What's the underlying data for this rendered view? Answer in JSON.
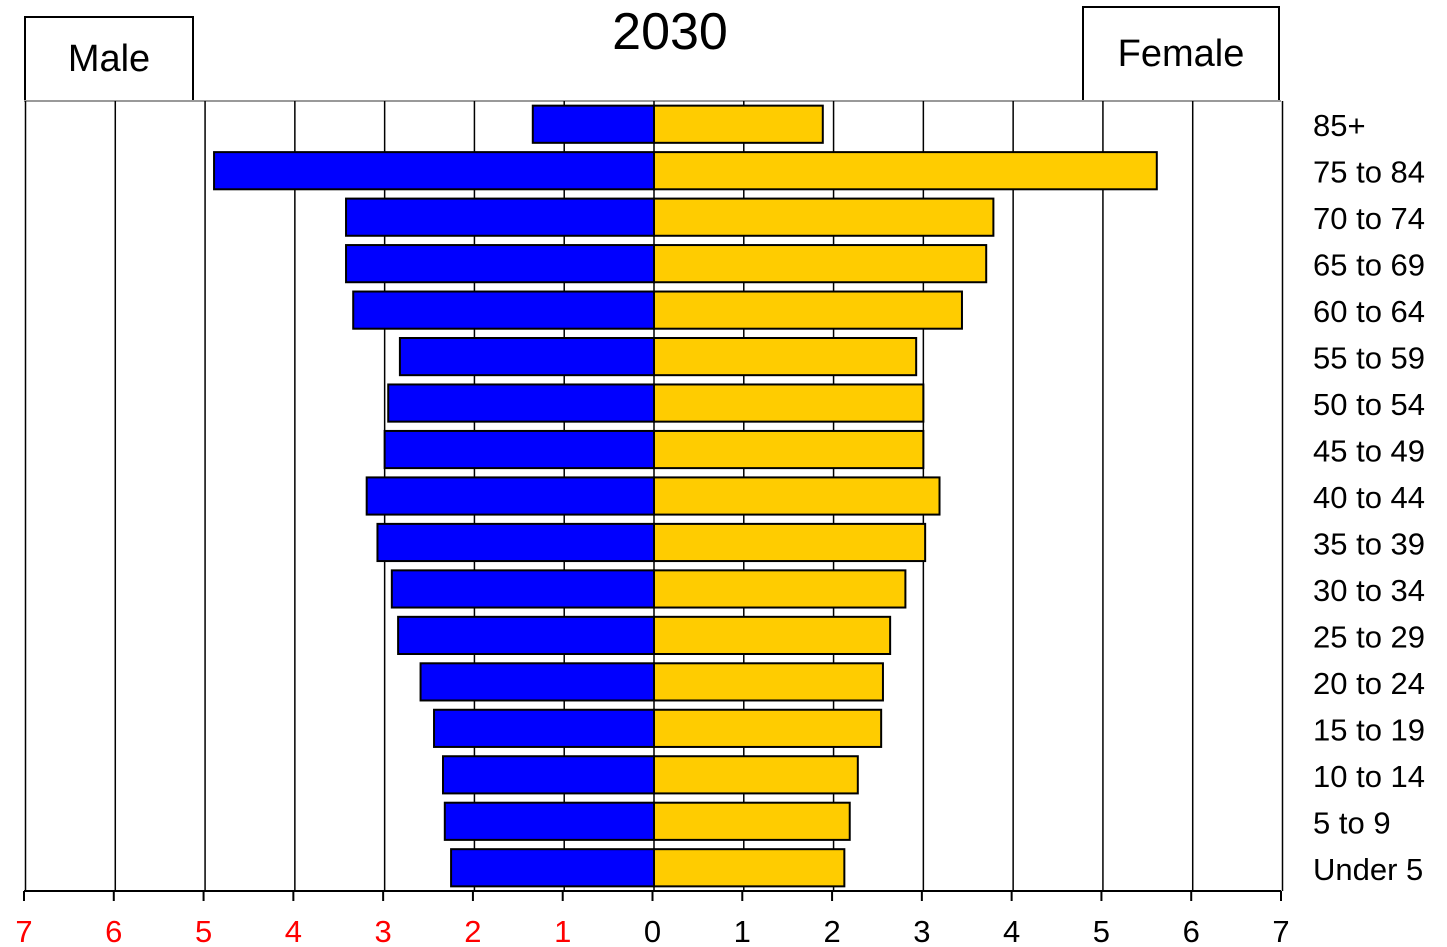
{
  "chart_data": {
    "type": "bar",
    "orientation": "horizontal",
    "title": "2030",
    "legend": {
      "left": "Male",
      "right": "Female"
    },
    "categories": [
      "85+",
      "75 to 84",
      "70 to 74",
      "65 to 69",
      "60 to 64",
      "55 to 59",
      "50 to 54",
      "45 to 49",
      "40 to 44",
      "35 to 39",
      "30 to 34",
      "25 to 29",
      "20 to 24",
      "15 to 19",
      "10 to 14",
      "5 to 9",
      "Under 5"
    ],
    "series": [
      {
        "name": "Male",
        "color": "#0000ff",
        "values": [
          1.35,
          4.9,
          3.43,
          3.43,
          3.35,
          2.83,
          2.96,
          3.0,
          3.2,
          3.08,
          2.92,
          2.85,
          2.6,
          2.45,
          2.35,
          2.33,
          2.26
        ]
      },
      {
        "name": "Female",
        "color": "#ffcc00",
        "values": [
          1.88,
          5.6,
          3.78,
          3.7,
          3.43,
          2.92,
          3.0,
          3.0,
          3.18,
          3.02,
          2.8,
          2.63,
          2.55,
          2.53,
          2.27,
          2.18,
          2.12
        ]
      }
    ],
    "xlim": [
      -7,
      7
    ],
    "x_ticks": [
      {
        "label": "7",
        "color": "#ff0000"
      },
      {
        "label": "6",
        "color": "#ff0000"
      },
      {
        "label": "5",
        "color": "#ff0000"
      },
      {
        "label": "4",
        "color": "#ff0000"
      },
      {
        "label": "3",
        "color": "#ff0000"
      },
      {
        "label": "2",
        "color": "#ff0000"
      },
      {
        "label": "1",
        "color": "#ff0000"
      },
      {
        "label": "0",
        "color": "#000000"
      },
      {
        "label": "1",
        "color": "#000000"
      },
      {
        "label": "2",
        "color": "#000000"
      },
      {
        "label": "3",
        "color": "#000000"
      },
      {
        "label": "4",
        "color": "#000000"
      },
      {
        "label": "5",
        "color": "#000000"
      },
      {
        "label": "6",
        "color": "#000000"
      },
      {
        "label": "7",
        "color": "#000000"
      }
    ],
    "grid": true
  }
}
